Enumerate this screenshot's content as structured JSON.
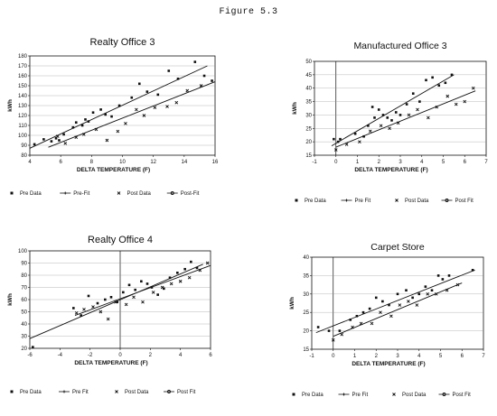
{
  "figure_label": "Figure 5.3",
  "legend_labels": {
    "pre_data": "Pre Data",
    "pre_fit": "Pre Fit",
    "post_data": "Post Data",
    "post_fit": "Post Fit"
  },
  "chart_data": [
    {
      "type": "scatter",
      "title": "Realty Office 3",
      "xlabel": "DELTA TEMPERATURE (F)",
      "ylabel": "kWh",
      "xlim": [
        4,
        16
      ],
      "ylim": [
        80,
        180
      ],
      "xticks": [
        "4",
        "6",
        "8",
        "10",
        "12",
        "14",
        "16"
      ],
      "yticks": [
        "80",
        "90",
        "100",
        "110",
        "120",
        "130",
        "140",
        "150",
        "160",
        "170",
        "180"
      ],
      "legend_position": "bottom",
      "legend_entries": [
        "Pre Data",
        "Pre-Fit",
        "Post Data",
        "Post-Fit"
      ],
      "series": [
        {
          "name": "Pre Data",
          "kind": "points",
          "marker": "square",
          "x": [
            4.3,
            4.9,
            5.4,
            5.7,
            5.9,
            6.2,
            6.8,
            7.0,
            7.4,
            7.6,
            7.8,
            8.1,
            8.6,
            8.9,
            9.3,
            9.8,
            10.6,
            11.1,
            11.6,
            12.3,
            13.0,
            13.6,
            14.7,
            15.3,
            15.8
          ],
          "y": [
            91,
            96,
            94,
            97,
            95,
            101,
            108,
            113,
            110,
            116,
            114,
            123,
            126,
            121,
            119,
            130,
            138,
            152,
            144,
            141,
            165,
            157,
            174,
            160,
            155
          ]
        },
        {
          "name": "Pre-Fit",
          "kind": "fit",
          "marker": "plus",
          "x": [
            4,
            15.5
          ],
          "y": [
            87,
            170
          ]
        },
        {
          "name": "Post Data",
          "kind": "points",
          "marker": "x",
          "x": [
            5.8,
            6.3,
            7.0,
            7.5,
            8.3,
            9.0,
            9.7,
            10.2,
            10.9,
            11.4,
            12.1,
            12.9,
            13.5,
            14.2,
            15.1
          ],
          "y": [
            99,
            92,
            98,
            101,
            106,
            95,
            104,
            112,
            126,
            120,
            128,
            129,
            133,
            145,
            150
          ]
        },
        {
          "name": "Post-Fit",
          "kind": "fit",
          "marker": "circle",
          "x": [
            5.2,
            16
          ],
          "y": [
            88,
            154
          ]
        }
      ]
    },
    {
      "type": "scatter",
      "title": "Manufactured Office 3",
      "xlabel": "DELTA TEMPERATURE (F)",
      "ylabel": "kWh",
      "xlim": [
        -1,
        7
      ],
      "ylim": [
        15,
        50
      ],
      "xticks": [
        "-1",
        "0",
        "1",
        "2",
        "3",
        "4",
        "5",
        "6",
        "7"
      ],
      "yticks": [
        "15",
        "20",
        "25",
        "30",
        "35",
        "40",
        "45",
        "50"
      ],
      "legend_position": "bottom",
      "legend_entries": [
        "Pre Data",
        "Pre Fit",
        "Post Data",
        "Post Fit"
      ],
      "series": [
        {
          "name": "Pre Data",
          "kind": "points",
          "marker": "square",
          "x": [
            -0.1,
            0.1,
            0.2,
            0.9,
            1.3,
            1.5,
            1.7,
            1.8,
            2.0,
            2.2,
            2.4,
            2.6,
            2.8,
            3.0,
            3.3,
            3.6,
            3.9,
            4.2,
            4.5,
            4.8,
            5.1,
            5.4
          ],
          "y": [
            21,
            20,
            21,
            23,
            22,
            26,
            33,
            29,
            32,
            30,
            29,
            28,
            31,
            30,
            34,
            38,
            35,
            43,
            44,
            41,
            42,
            45
          ]
        },
        {
          "name": "Pre Fit",
          "kind": "fit",
          "marker": "plus",
          "x": [
            -0.2,
            5.5
          ],
          "y": [
            18.5,
            45
          ]
        },
        {
          "name": "Post Data",
          "kind": "points",
          "marker": "x",
          "x": [
            0.0,
            0.5,
            1.1,
            1.6,
            2.1,
            2.5,
            2.9,
            3.4,
            3.8,
            4.3,
            4.7,
            5.2,
            5.6,
            6.0,
            6.4
          ],
          "y": [
            17,
            19,
            20,
            24,
            26,
            25,
            27,
            30,
            32,
            29,
            33,
            37,
            34,
            35,
            40
          ]
        },
        {
          "name": "Post Fit",
          "kind": "fit",
          "marker": "circle",
          "x": [
            0,
            6.5
          ],
          "y": [
            18,
            39
          ]
        }
      ]
    },
    {
      "type": "scatter",
      "title": "Realty Office 4",
      "xlabel": "DELTA TEMPERATURE (F)",
      "ylabel": "kWh",
      "xlim": [
        -6,
        6
      ],
      "ylim": [
        20,
        100
      ],
      "xticks": [
        "-6",
        "-4",
        "-2",
        "0",
        "2",
        "4",
        "6"
      ],
      "yticks": [
        "20",
        "30",
        "40",
        "50",
        "60",
        "70",
        "80",
        "90",
        "100"
      ],
      "legend_position": "bottom",
      "legend_entries": [
        "Pre Data",
        "Pre Fit",
        "Post Data",
        "Post Fit"
      ],
      "series": [
        {
          "name": "Pre Data",
          "kind": "points",
          "marker": "square",
          "x": [
            -5.8,
            -3.1,
            -2.6,
            -2.1,
            -1.5,
            -1.0,
            -0.6,
            -0.2,
            0.2,
            0.6,
            1.0,
            1.4,
            1.8,
            2.1,
            2.5,
            2.9,
            3.3,
            3.8,
            4.3,
            4.7,
            5.1
          ],
          "y": [
            21,
            53,
            47,
            63,
            57,
            60,
            62,
            58,
            66,
            72,
            68,
            75,
            73,
            70,
            64,
            69,
            78,
            82,
            85,
            91,
            86
          ]
        },
        {
          "name": "Pre Fit",
          "kind": "fit",
          "marker": "plus",
          "x": [
            -6,
            5.5
          ],
          "y": [
            28,
            89
          ]
        },
        {
          "name": "Post Data",
          "kind": "points",
          "marker": "x",
          "x": [
            -2.9,
            -2.4,
            -1.8,
            -1.3,
            -0.8,
            -0.3,
            0.4,
            0.9,
            1.5,
            2.2,
            2.8,
            3.4,
            4.0,
            4.6,
            5.3,
            5.8
          ],
          "y": [
            49,
            52,
            54,
            50,
            44,
            58,
            56,
            62,
            58,
            66,
            70,
            73,
            75,
            78,
            84,
            90
          ]
        },
        {
          "name": "Post Fit",
          "kind": "fit",
          "marker": "circle",
          "x": [
            -3,
            6
          ],
          "y": [
            47,
            88
          ]
        }
      ]
    },
    {
      "type": "scatter",
      "title": "Carpet Store",
      "xlabel": "DELTA TEMPERATURE (F)",
      "ylabel": "kWh",
      "xlim": [
        -1,
        7
      ],
      "ylim": [
        15,
        40
      ],
      "xticks": [
        "-1",
        "0",
        "1",
        "2",
        "3",
        "4",
        "5",
        "6",
        "7"
      ],
      "yticks": [
        "15",
        "20",
        "25",
        "30",
        "35",
        "40"
      ],
      "legend_position": "bottom",
      "legend_entries": [
        "Pre Data",
        "Pre Fit",
        "Post Data",
        "Post Fit"
      ],
      "series": [
        {
          "name": "Pre Data",
          "kind": "points",
          "marker": "square",
          "x": [
            -0.7,
            -0.2,
            0.3,
            0.8,
            1.1,
            1.4,
            1.7,
            2.0,
            2.3,
            2.6,
            3.0,
            3.4,
            3.7,
            4.0,
            4.3,
            4.6,
            4.9,
            5.1,
            5.4,
            6.5
          ],
          "y": [
            21,
            20,
            20,
            23,
            24,
            25,
            26,
            29,
            28,
            27,
            30,
            31,
            29,
            30,
            32,
            31,
            35,
            34,
            35,
            36.5
          ]
        },
        {
          "name": "Pre Fit",
          "kind": "fit",
          "marker": "plus",
          "x": [
            -0.8,
            6.6
          ],
          "y": [
            19.5,
            36.5
          ]
        },
        {
          "name": "Post Data",
          "kind": "points",
          "marker": "x",
          "x": [
            0.0,
            0.4,
            0.9,
            1.3,
            1.8,
            2.2,
            2.7,
            3.1,
            3.5,
            3.9,
            4.4,
            4.8,
            5.3,
            5.8
          ],
          "y": [
            17.5,
            19,
            21,
            22,
            22,
            25,
            24,
            27,
            28,
            27,
            30,
            30,
            31,
            32.5
          ]
        },
        {
          "name": "Post Fit",
          "kind": "fit",
          "marker": "circle",
          "x": [
            0,
            6
          ],
          "y": [
            18.5,
            33
          ]
        }
      ]
    }
  ]
}
